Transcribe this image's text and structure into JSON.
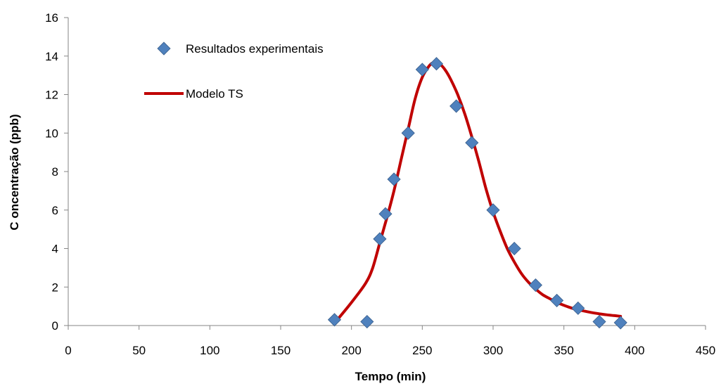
{
  "chart_data": {
    "type": "scatter",
    "title": "",
    "xlabel": "Tempo (min)",
    "ylabel": "C oncentração (ppb)",
    "xlim": [
      0,
      450
    ],
    "ylim": [
      0,
      16
    ],
    "xticks": [
      0,
      50,
      100,
      150,
      200,
      250,
      300,
      350,
      400,
      450
    ],
    "yticks": [
      0,
      2,
      4,
      6,
      8,
      10,
      12,
      14,
      16
    ],
    "grid": false,
    "legend_position": "upper-left",
    "series": [
      {
        "name": "Resultados experimentais",
        "kind": "scatter",
        "marker": "diamond",
        "color": "#4f81bd",
        "x": [
          188,
          211,
          220,
          224,
          230,
          240,
          250,
          260,
          274,
          285,
          300,
          315,
          330,
          345,
          360,
          375,
          390
        ],
        "y": [
          0.3,
          0.2,
          4.5,
          5.8,
          7.6,
          10.0,
          13.3,
          13.6,
          11.4,
          9.5,
          6.0,
          4.0,
          2.1,
          1.3,
          0.9,
          0.2,
          0.15
        ]
      },
      {
        "name": "Modelo TS",
        "kind": "line",
        "color": "#c00000",
        "x": [
          190,
          200,
          210,
          215,
          220,
          225,
          230,
          235,
          240,
          245,
          250,
          255,
          258,
          262,
          266,
          270,
          275,
          280,
          285,
          290,
          295,
          300,
          305,
          310,
          315,
          320,
          325,
          330,
          335,
          340,
          345,
          350,
          355,
          360,
          365,
          370,
          375,
          380,
          385,
          390
        ],
        "y": [
          0.3,
          1.2,
          2.2,
          3.0,
          4.3,
          5.6,
          7.0,
          8.6,
          10.2,
          11.8,
          12.9,
          13.5,
          13.65,
          13.6,
          13.3,
          12.8,
          12.0,
          11.0,
          9.8,
          8.5,
          7.1,
          5.9,
          4.9,
          4.0,
          3.3,
          2.7,
          2.25,
          1.9,
          1.6,
          1.4,
          1.2,
          1.05,
          0.92,
          0.82,
          0.74,
          0.67,
          0.61,
          0.56,
          0.52,
          0.48
        ]
      }
    ]
  }
}
